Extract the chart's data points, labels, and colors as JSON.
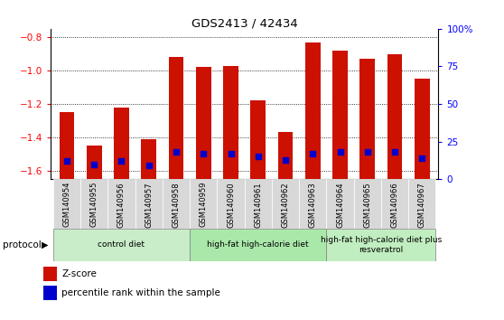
{
  "title": "GDS2413 / 42434",
  "samples": [
    "GSM140954",
    "GSM140955",
    "GSM140956",
    "GSM140957",
    "GSM140958",
    "GSM140959",
    "GSM140960",
    "GSM140961",
    "GSM140962",
    "GSM140963",
    "GSM140964",
    "GSM140965",
    "GSM140966",
    "GSM140967"
  ],
  "zscore": [
    -1.25,
    -1.45,
    -1.22,
    -1.41,
    -0.92,
    -0.98,
    -0.97,
    -1.18,
    -1.37,
    -0.83,
    -0.88,
    -0.93,
    -0.9,
    -1.05
  ],
  "percentile": [
    12,
    10,
    12,
    9,
    18,
    17,
    17,
    15,
    13,
    17,
    18,
    18,
    18,
    14
  ],
  "bar_color": "#cc1100",
  "dot_color": "#0000cc",
  "ylim_left": [
    -1.65,
    -0.75
  ],
  "ylim_right": [
    0,
    100
  ],
  "yticks_left": [
    -1.6,
    -1.4,
    -1.2,
    -1.0,
    -0.8
  ],
  "yticks_right": [
    0,
    25,
    50,
    75,
    100
  ],
  "protocol_groups": [
    {
      "label": "control diet",
      "start": 0,
      "end": 5,
      "color": "#c8edc8"
    },
    {
      "label": "high-fat high-calorie diet",
      "start": 5,
      "end": 10,
      "color": "#aae8aa"
    },
    {
      "label": "high-fat high-calorie diet plus\nresveratrol",
      "start": 10,
      "end": 14,
      "color": "#c0eec0"
    }
  ],
  "protocol_label": "protocol",
  "legend_zscore": "Z-score",
  "legend_percentile": "percentile rank within the sample",
  "sample_bg_color": "#d8d8d8",
  "plot_bg": "#ffffff",
  "bar_width": 0.55
}
